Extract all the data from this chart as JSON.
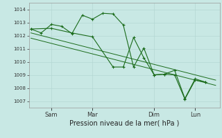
{
  "xlabel": "Pression niveau de la mer( hPa )",
  "bg_color": "#c8e8e4",
  "grid_color": "#b0d4d0",
  "line_color": "#1a6b1a",
  "ylim": [
    1006.5,
    1014.5
  ],
  "yticks": [
    1007,
    1008,
    1009,
    1010,
    1011,
    1012,
    1013,
    1014
  ],
  "xtick_labels": [
    "Sam",
    "Mar",
    "Dim",
    "Lun"
  ],
  "xtick_positions": [
    1,
    3,
    6,
    8
  ],
  "xlim": [
    -0.1,
    9.2
  ],
  "series1_x": [
    0.0,
    0.5,
    1.0,
    1.5,
    2.0,
    2.5,
    3.0,
    3.5,
    4.0,
    4.5,
    5.0,
    5.5,
    6.0,
    6.5,
    7.0,
    7.5,
    8.0,
    8.5
  ],
  "series1_y": [
    1012.5,
    1012.2,
    1012.85,
    1012.7,
    1012.15,
    1013.55,
    1013.25,
    1013.7,
    1013.65,
    1012.8,
    1009.6,
    1011.05,
    1009.0,
    1009.05,
    1009.0,
    1007.15,
    1008.6,
    1008.45
  ],
  "series2_x": [
    0.0,
    1.0,
    2.0,
    3.0,
    4.0,
    4.5,
    5.0,
    5.5,
    6.0,
    6.5,
    7.0,
    7.5,
    8.0,
    8.5
  ],
  "series2_y": [
    1012.5,
    1012.55,
    1012.2,
    1011.9,
    1009.6,
    1009.6,
    1011.85,
    1010.3,
    1009.0,
    1009.05,
    1009.35,
    1007.2,
    1008.7,
    1008.45
  ],
  "trend1_x": [
    0.0,
    9.0
  ],
  "trend1_y": [
    1012.2,
    1008.6
  ],
  "trend2_x": [
    0.0,
    9.0
  ],
  "trend2_y": [
    1011.8,
    1008.2
  ]
}
